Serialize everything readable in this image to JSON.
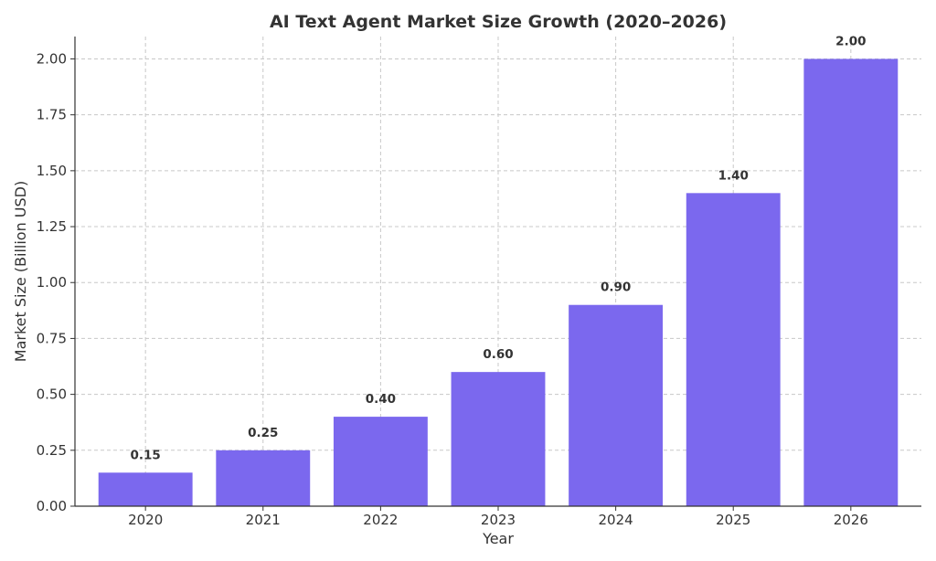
{
  "chart_data": {
    "type": "bar",
    "title": "AI Text Agent Market Size Growth (2020–2026)",
    "xlabel": "Year",
    "ylabel": "Market Size (Billion USD)",
    "categories": [
      "2020",
      "2021",
      "2022",
      "2023",
      "2024",
      "2025",
      "2026"
    ],
    "values": [
      0.15,
      0.25,
      0.4,
      0.6,
      0.9,
      1.4,
      2.0
    ],
    "data_labels": [
      "0.15",
      "0.25",
      "0.40",
      "0.60",
      "0.90",
      "1.40",
      "2.00"
    ],
    "ylim": [
      0,
      2.1
    ],
    "yticks": [
      "0.00",
      "0.25",
      "0.50",
      "0.75",
      "1.00",
      "1.25",
      "1.50",
      "1.75",
      "2.00"
    ],
    "grid": true,
    "bar_color": "#7b68ee"
  }
}
